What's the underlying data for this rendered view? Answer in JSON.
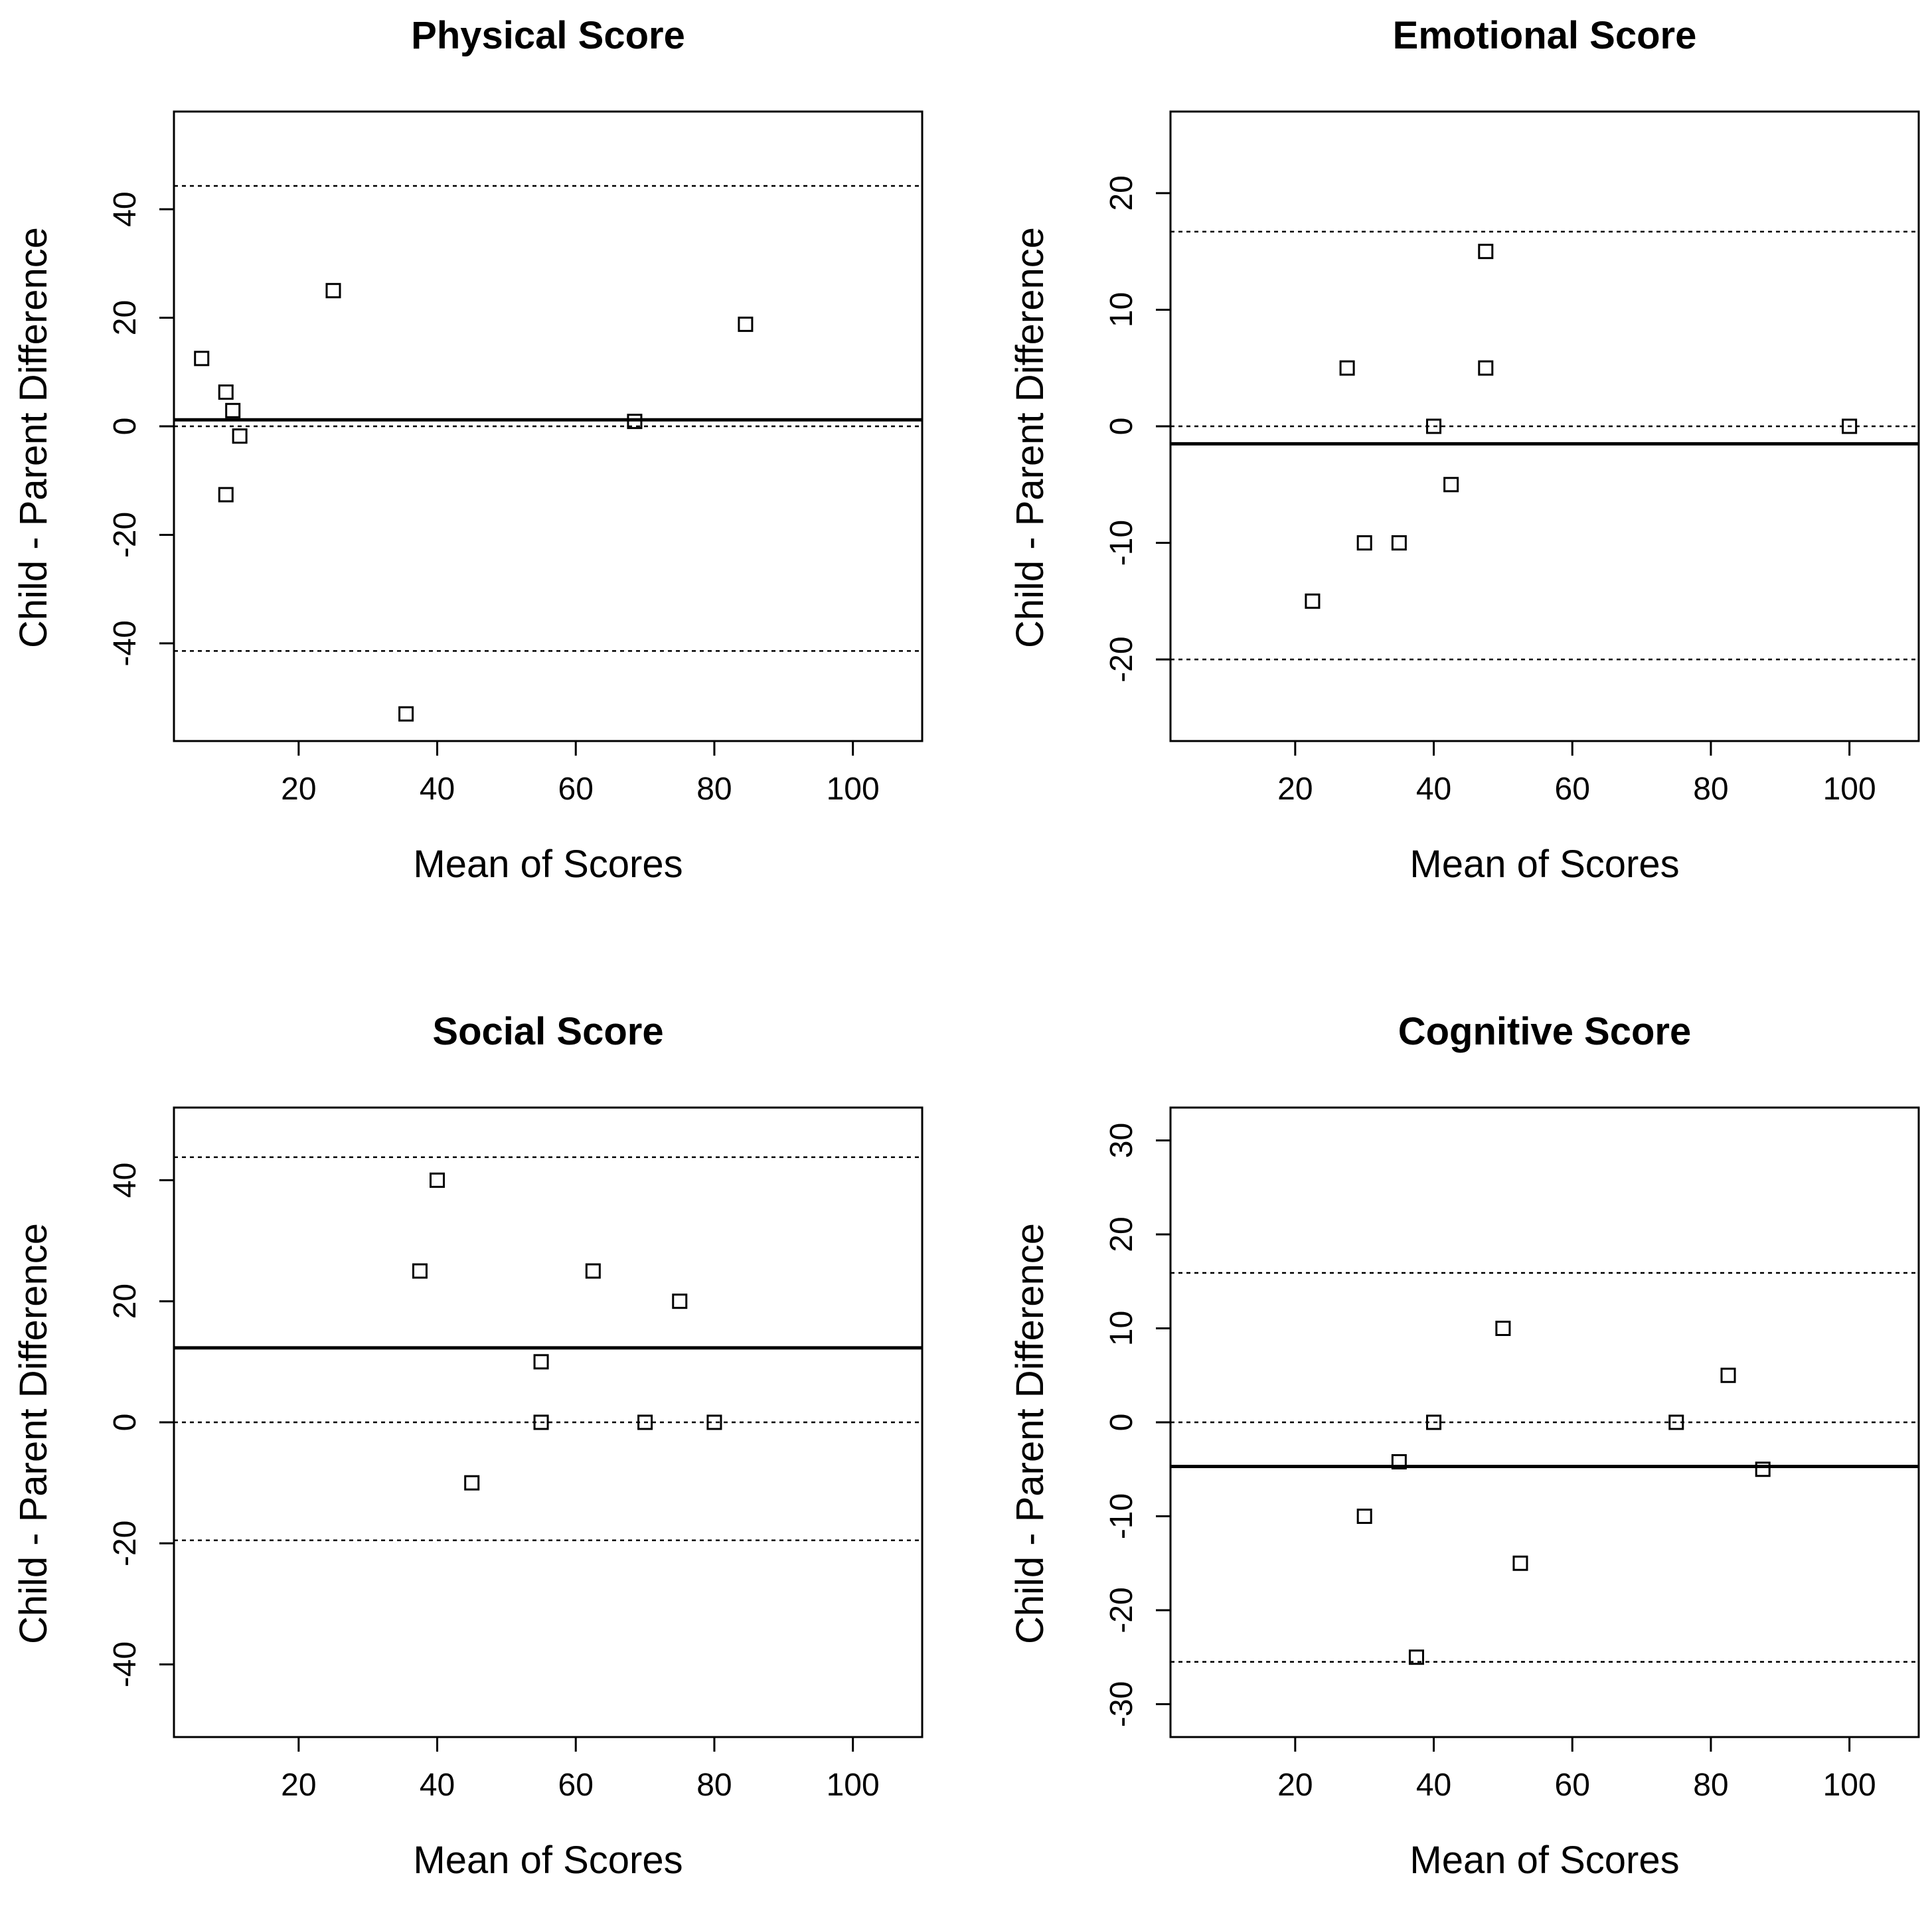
{
  "chart_data": [
    {
      "type": "scatter",
      "title": "Physical Score",
      "xlabel": "Mean of Scores",
      "ylabel": "Child - Parent Difference",
      "xlim": [
        2,
        110
      ],
      "ylim": [
        -58,
        58
      ],
      "x_ticks": [
        20,
        40,
        60,
        80,
        100
      ],
      "y_ticks": [
        -40,
        -20,
        0,
        20,
        40
      ],
      "x_tick_labels": [
        "20",
        "40",
        "60",
        "80",
        "100"
      ],
      "y_tick_labels": [
        "-40",
        "-20",
        "0",
        "20",
        "40"
      ],
      "mean_difference": 1.2,
      "upper_limit": 44.3,
      "lower_limit": -41.4,
      "zero_line": 0,
      "points": [
        {
          "x": 6.0,
          "y": 12.5
        },
        {
          "x": 9.5,
          "y": 6.3
        },
        {
          "x": 10.5,
          "y": 2.9
        },
        {
          "x": 11.5,
          "y": -1.8
        },
        {
          "x": 9.5,
          "y": -12.6
        },
        {
          "x": 25.0,
          "y": 25.0
        },
        {
          "x": 35.5,
          "y": -53.0
        },
        {
          "x": 68.5,
          "y": 0.9
        },
        {
          "x": 84.5,
          "y": 18.8
        }
      ]
    },
    {
      "type": "scatter",
      "title": "Emotional Score",
      "xlabel": "Mean of Scores",
      "ylabel": "Child - Parent Difference",
      "xlim": [
        2,
        110
      ],
      "ylim": [
        -27,
        27
      ],
      "x_ticks": [
        20,
        40,
        60,
        80,
        100
      ],
      "y_ticks": [
        -20,
        -10,
        0,
        10,
        20
      ],
      "x_tick_labels": [
        "20",
        "40",
        "60",
        "80",
        "100"
      ],
      "y_tick_labels": [
        "-20",
        "-10",
        "0",
        "10",
        "20"
      ],
      "mean_difference": -1.5,
      "upper_limit": 16.7,
      "lower_limit": -20.0,
      "zero_line": 0,
      "points": [
        {
          "x": 22.5,
          "y": -15
        },
        {
          "x": 27.5,
          "y": 5
        },
        {
          "x": 30.0,
          "y": -10
        },
        {
          "x": 35.0,
          "y": -10
        },
        {
          "x": 40.0,
          "y": 0
        },
        {
          "x": 42.5,
          "y": -5
        },
        {
          "x": 47.5,
          "y": 15
        },
        {
          "x": 47.5,
          "y": 5
        },
        {
          "x": 100.0,
          "y": 0
        }
      ]
    },
    {
      "type": "scatter",
      "title": "Social Score",
      "xlabel": "Mean of Scores",
      "ylabel": "Child - Parent Difference",
      "xlim": [
        2,
        110
      ],
      "ylim": [
        -52,
        52
      ],
      "x_ticks": [
        20,
        40,
        60,
        80,
        100
      ],
      "y_ticks": [
        -40,
        -20,
        0,
        20,
        40
      ],
      "x_tick_labels": [
        "20",
        "40",
        "60",
        "80",
        "100"
      ],
      "y_tick_labels": [
        "-40",
        "-20",
        "0",
        "20",
        "40"
      ],
      "mean_difference": 12.3,
      "upper_limit": 43.8,
      "lower_limit": -19.5,
      "zero_line": 0,
      "points": [
        {
          "x": 37.5,
          "y": 25
        },
        {
          "x": 40.0,
          "y": 40
        },
        {
          "x": 45.0,
          "y": -10
        },
        {
          "x": 55.0,
          "y": 10
        },
        {
          "x": 55.0,
          "y": 0
        },
        {
          "x": 62.5,
          "y": 25
        },
        {
          "x": 70.0,
          "y": 0
        },
        {
          "x": 75.0,
          "y": 20
        },
        {
          "x": 80.0,
          "y": 0
        }
      ]
    },
    {
      "type": "scatter",
      "title": "Cognitive Score",
      "xlabel": "Mean of Scores",
      "ylabel": "Child - Parent Difference",
      "xlim": [
        2,
        110
      ],
      "ylim": [
        -33.5,
        33.5
      ],
      "x_ticks": [
        20,
        40,
        60,
        80,
        100
      ],
      "y_ticks": [
        -30,
        -20,
        -10,
        0,
        10,
        20,
        30
      ],
      "x_tick_labels": [
        "20",
        "40",
        "60",
        "80",
        "100"
      ],
      "y_tick_labels": [
        "-30",
        "-20",
        "-10",
        "0",
        "10",
        "20",
        "30"
      ],
      "mean_difference": -4.7,
      "upper_limit": 15.9,
      "lower_limit": -25.5,
      "zero_line": 0,
      "points": [
        {
          "x": 30.0,
          "y": -10
        },
        {
          "x": 35.0,
          "y": -4.2
        },
        {
          "x": 37.5,
          "y": -25
        },
        {
          "x": 40.0,
          "y": 0
        },
        {
          "x": 50.0,
          "y": 10
        },
        {
          "x": 52.5,
          "y": -15
        },
        {
          "x": 75.0,
          "y": 0
        },
        {
          "x": 82.5,
          "y": 5
        },
        {
          "x": 87.5,
          "y": -5
        }
      ]
    }
  ]
}
